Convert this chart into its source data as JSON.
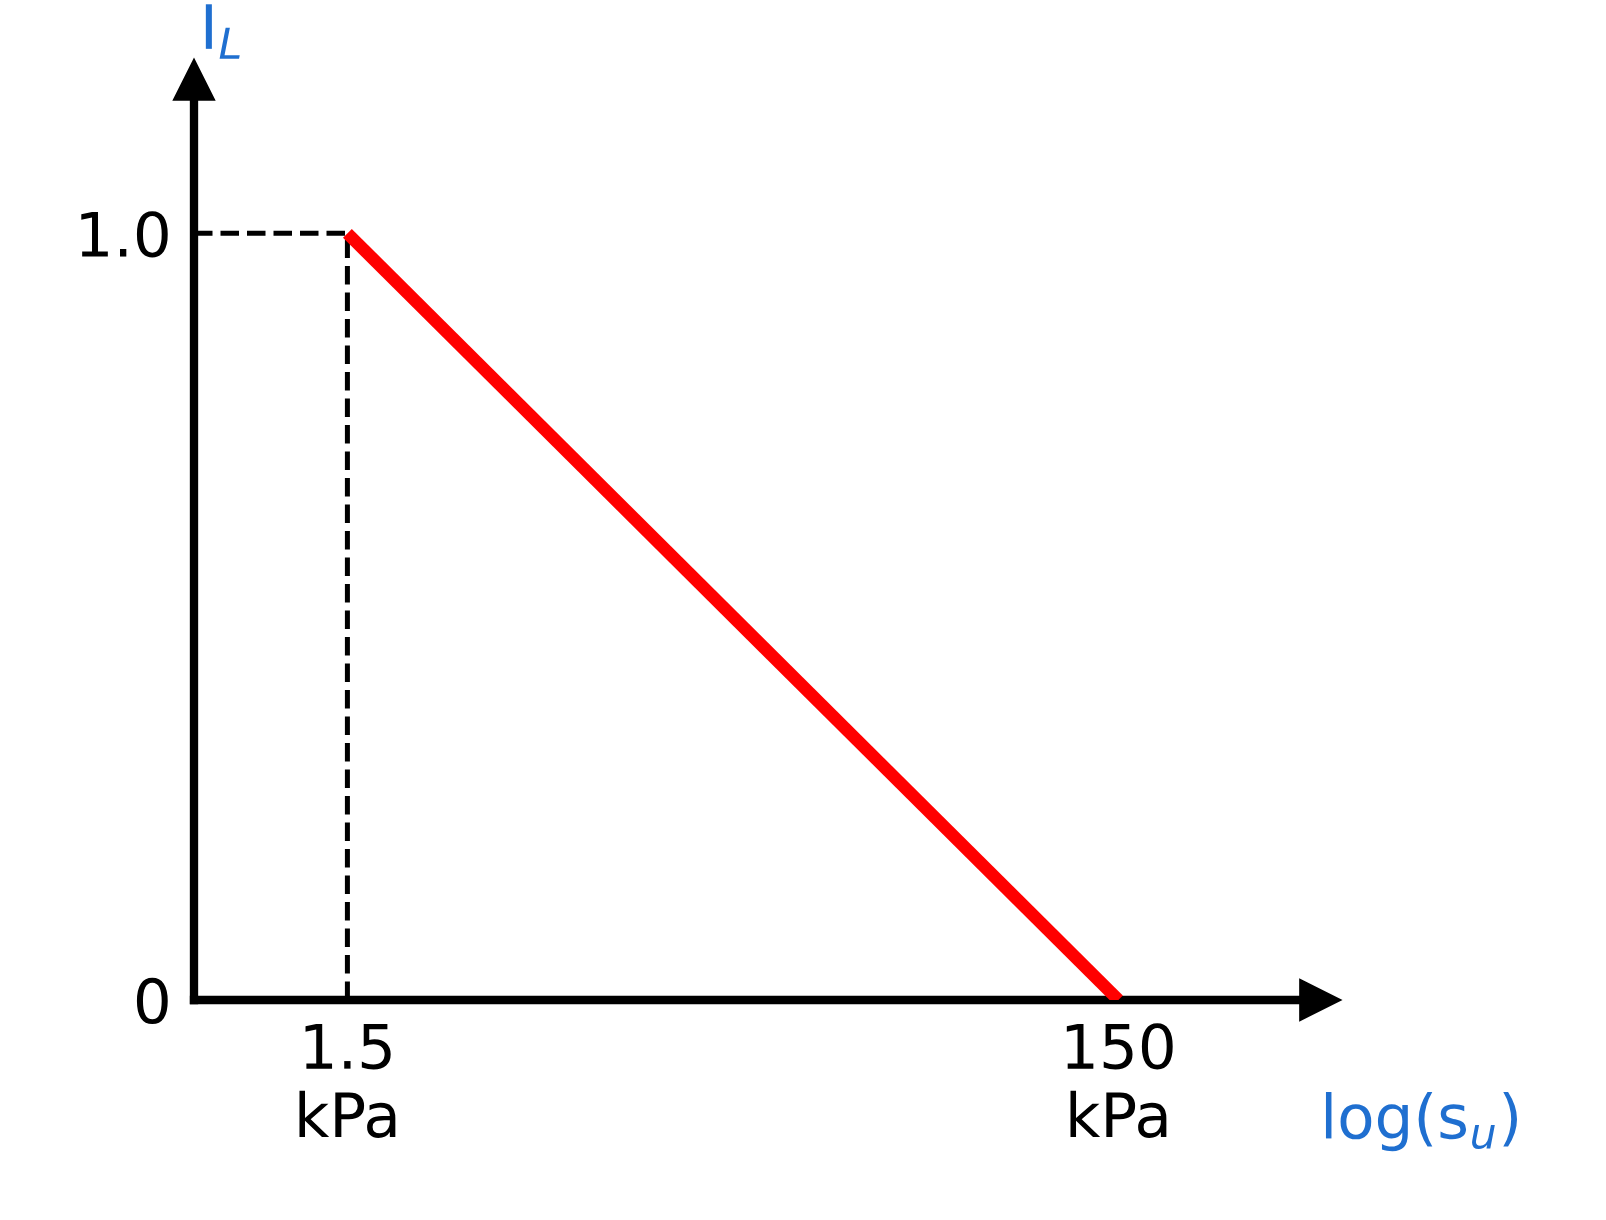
{
  "chart_data": {
    "type": "line",
    "xlabel": "log(s$_{u}$)",
    "ylabel": "I$_{L}$",
    "log": "x",
    "x": [
      1.5,
      150
    ],
    "series": [
      {
        "color": "#ff0000",
        "values": [
          1.0,
          0
        ]
      }
    ],
    "xlim": [
      0.6,
      500
    ],
    "ylim": [
      0,
      1.2
    ],
    "xticks": [
      {
        "value": 1.5,
        "label": "1.5\nkPa"
      },
      {
        "value": 150,
        "label": "150\nkPa"
      }
    ],
    "yticks": [
      0,
      {
        "value": 1.0,
        "label": "1.0"
      }
    ],
    "ref_lines": [
      {
        "axis": "x",
        "value": 1.5,
        "line_style": "dashed",
        "color": "#000000"
      },
      {
        "axis": "y",
        "value": 1.0,
        "line_style": "dashed",
        "color": "#000000"
      }
    ],
    "grid": false,
    "legend": false,
    "marker": "none",
    "line_style": "solid"
  }
}
